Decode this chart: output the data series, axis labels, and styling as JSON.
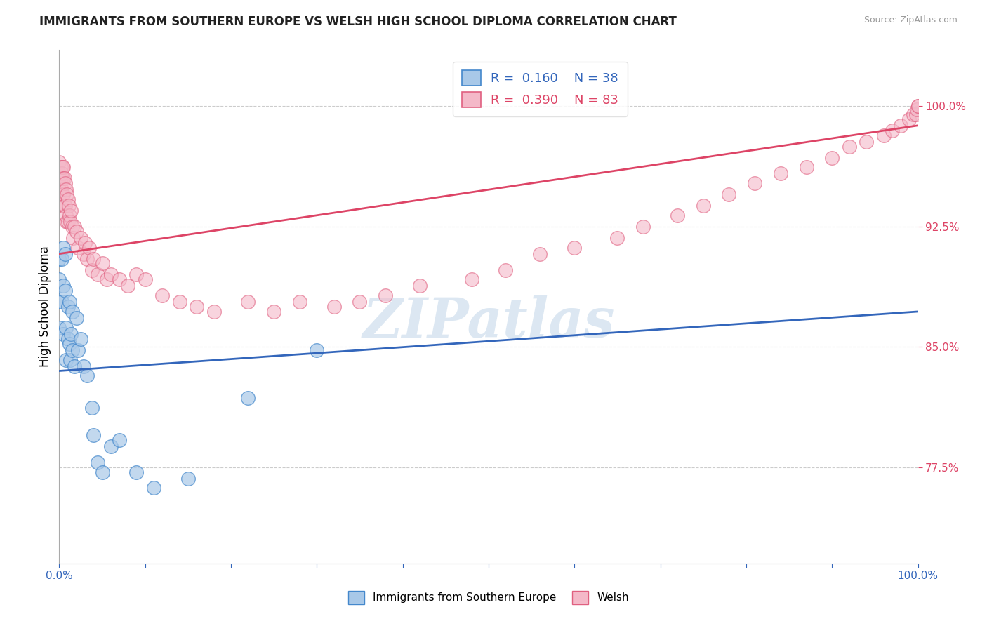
{
  "title": "IMMIGRANTS FROM SOUTHERN EUROPE VS WELSH HIGH SCHOOL DIPLOMA CORRELATION CHART",
  "source": "Source: ZipAtlas.com",
  "ylabel": "High School Diploma",
  "yticks": [
    0.775,
    0.85,
    0.925,
    1.0
  ],
  "ytick_labels": [
    "77.5%",
    "85.0%",
    "92.5%",
    "100.0%"
  ],
  "xlim": [
    0.0,
    1.0
  ],
  "ylim": [
    0.715,
    1.035
  ],
  "legend_blue_label": "Immigrants from Southern Europe",
  "legend_pink_label": "Welsh",
  "blue_R": "0.160",
  "blue_N": "38",
  "pink_R": "0.390",
  "pink_N": "83",
  "blue_fill_color": "#a8c8e8",
  "pink_fill_color": "#f4b8c8",
  "blue_edge_color": "#4488cc",
  "pink_edge_color": "#e06080",
  "blue_line_color": "#3366bb",
  "pink_line_color": "#dd4466",
  "blue_scatter_x": [
    0.0,
    0.0,
    0.0,
    0.0,
    0.003,
    0.003,
    0.005,
    0.005,
    0.005,
    0.007,
    0.007,
    0.008,
    0.008,
    0.01,
    0.01,
    0.012,
    0.012,
    0.013,
    0.014,
    0.015,
    0.015,
    0.018,
    0.02,
    0.022,
    0.025,
    0.028,
    0.032,
    0.038,
    0.04,
    0.045,
    0.05,
    0.06,
    0.07,
    0.09,
    0.11,
    0.15,
    0.22,
    0.3
  ],
  "blue_scatter_y": [
    0.905,
    0.892,
    0.878,
    0.862,
    0.905,
    0.878,
    0.912,
    0.888,
    0.858,
    0.908,
    0.885,
    0.862,
    0.842,
    0.875,
    0.855,
    0.878,
    0.852,
    0.842,
    0.858,
    0.872,
    0.848,
    0.838,
    0.868,
    0.848,
    0.855,
    0.838,
    0.832,
    0.812,
    0.795,
    0.778,
    0.772,
    0.788,
    0.792,
    0.772,
    0.762,
    0.768,
    0.818,
    0.848
  ],
  "pink_scatter_x": [
    0.0,
    0.0,
    0.0,
    0.0,
    0.0,
    0.002,
    0.002,
    0.003,
    0.003,
    0.004,
    0.004,
    0.005,
    0.005,
    0.005,
    0.006,
    0.006,
    0.007,
    0.007,
    0.008,
    0.008,
    0.009,
    0.009,
    0.01,
    0.01,
    0.011,
    0.012,
    0.013,
    0.014,
    0.015,
    0.016,
    0.018,
    0.02,
    0.022,
    0.025,
    0.028,
    0.03,
    0.032,
    0.035,
    0.038,
    0.04,
    0.045,
    0.05,
    0.055,
    0.06,
    0.07,
    0.08,
    0.09,
    0.1,
    0.12,
    0.14,
    0.16,
    0.18,
    0.22,
    0.25,
    0.28,
    0.32,
    0.35,
    0.38,
    0.42,
    0.48,
    0.52,
    0.56,
    0.6,
    0.65,
    0.68,
    0.72,
    0.75,
    0.78,
    0.81,
    0.84,
    0.87,
    0.9,
    0.92,
    0.94,
    0.96,
    0.97,
    0.98,
    0.99,
    0.995,
    0.998,
    0.999,
    1.0,
    1.0
  ],
  "pink_scatter_y": [
    0.965,
    0.958,
    0.952,
    0.945,
    0.938,
    0.962,
    0.955,
    0.958,
    0.948,
    0.962,
    0.945,
    0.962,
    0.955,
    0.945,
    0.955,
    0.938,
    0.952,
    0.938,
    0.948,
    0.932,
    0.945,
    0.928,
    0.942,
    0.928,
    0.938,
    0.932,
    0.928,
    0.935,
    0.925,
    0.918,
    0.925,
    0.922,
    0.912,
    0.918,
    0.908,
    0.915,
    0.905,
    0.912,
    0.898,
    0.905,
    0.895,
    0.902,
    0.892,
    0.895,
    0.892,
    0.888,
    0.895,
    0.892,
    0.882,
    0.878,
    0.875,
    0.872,
    0.878,
    0.872,
    0.878,
    0.875,
    0.878,
    0.882,
    0.888,
    0.892,
    0.898,
    0.908,
    0.912,
    0.918,
    0.925,
    0.932,
    0.938,
    0.945,
    0.952,
    0.958,
    0.962,
    0.968,
    0.975,
    0.978,
    0.982,
    0.985,
    0.988,
    0.992,
    0.995,
    0.995,
    0.998,
    1.0,
    1.0
  ],
  "blue_trend": [
    0.835,
    0.872
  ],
  "pink_trend": [
    0.908,
    0.988
  ],
  "watermark": "ZIPatlas",
  "watermark_color": "#c5d8ea",
  "background_color": "#ffffff",
  "grid_color": "#cccccc",
  "title_color": "#222222",
  "source_color": "#999999",
  "yticklabel_color": "#dd4466"
}
